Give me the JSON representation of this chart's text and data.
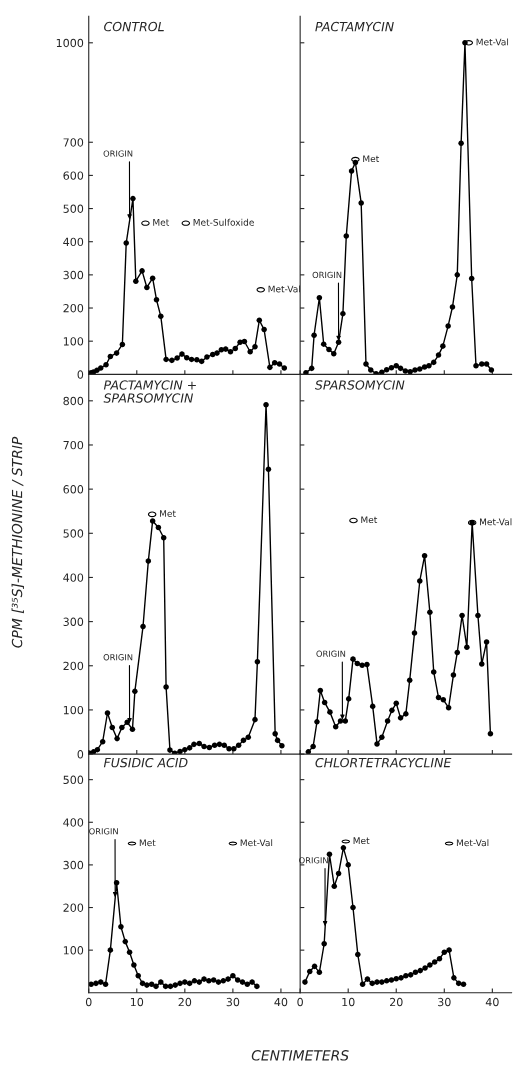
{
  "chart_data": [
    {
      "type": "line",
      "title": "CONTROL",
      "color": "#000000",
      "marker": "circle",
      "xlim": [
        0,
        44
      ],
      "xticks": [
        0,
        10,
        20,
        30,
        40
      ],
      "ylim": [
        0,
        1080
      ],
      "yticks": [
        0,
        100,
        200,
        300,
        400,
        500,
        600,
        700,
        1000
      ],
      "tick_labels": "y",
      "x": [
        0.5,
        1.0,
        1.7,
        2.5,
        3.6,
        4.5,
        5.8,
        7.0,
        7.8,
        9.2,
        9.8,
        11.1,
        12.1,
        13.3,
        14.1,
        15.0,
        16.1,
        17.3,
        18.4,
        19.4,
        20.4,
        21.4,
        22.5,
        23.5,
        24.6,
        25.8,
        26.7,
        27.6,
        28.5,
        29.5,
        30.5,
        31.5,
        32.4,
        33.6,
        34.6,
        35.5,
        36.5,
        37.7,
        38.7,
        39.7,
        40.7
      ],
      "values": [
        5,
        7,
        12,
        19,
        29,
        54,
        64,
        90,
        396,
        530,
        281,
        312,
        262,
        290,
        225,
        175,
        45,
        42,
        49,
        61,
        50,
        45,
        44,
        39,
        52,
        60,
        64,
        74,
        76,
        68,
        78,
        97,
        99,
        68,
        83,
        163,
        135,
        21,
        35,
        31,
        19
      ],
      "annotations": [
        {
          "text": "ORIGIN",
          "x": 8.5,
          "y": 463
        },
        {
          "text": "Met",
          "x": 11.8,
          "y": 456
        },
        {
          "text": "Met-Sulfoxide",
          "x": 20.2,
          "y": 456
        },
        {
          "text": "Met-Val",
          "x": 35.8,
          "y": 255
        }
      ]
    },
    {
      "type": "line",
      "title": "PACTAMYCIN",
      "color": "#000000",
      "marker": "circle",
      "xlim": [
        0,
        44
      ],
      "xticks": [
        0,
        10,
        20,
        30,
        40
      ],
      "ylim": [
        0,
        1080
      ],
      "yticks": [
        0,
        100,
        200,
        300,
        400,
        500,
        600,
        700,
        1000
      ],
      "tick_labels": false,
      "x": [
        1.2,
        2.4,
        2.9,
        4.0,
        4.9,
        6.0,
        7.0,
        8.0,
        8.9,
        9.6,
        10.7,
        11.5,
        12.7,
        13.7,
        14.7,
        15.8,
        17.0,
        18.0,
        19.0,
        20.0,
        20.9,
        21.9,
        22.9,
        23.9,
        24.9,
        25.9,
        26.8,
        27.8,
        28.8,
        29.7,
        30.8,
        31.7,
        32.7,
        33.5,
        34.3,
        35.7,
        36.6,
        37.8,
        38.8,
        39.8
      ],
      "values": [
        5,
        18,
        118,
        231,
        91,
        75,
        62,
        97,
        183,
        417,
        613,
        639,
        517,
        31,
        13,
        2,
        6,
        14,
        20,
        26,
        18,
        10,
        8,
        13,
        16,
        22,
        26,
        36,
        58,
        85,
        146,
        203,
        300,
        697,
        1000,
        289,
        26,
        31,
        31,
        13
      ],
      "annotations": [
        {
          "text": "ORIGIN",
          "x": 8.0,
          "y": 97
        },
        {
          "text": "Met",
          "x": 11.5,
          "y": 648
        },
        {
          "text": "Met-Val",
          "x": 35.1,
          "y": 1000
        }
      ]
    },
    {
      "type": "line",
      "title": "PACTAMYCIN +\nSPARSOMYCIN",
      "color": "#000000",
      "marker": "circle",
      "xlim": [
        0,
        44
      ],
      "xticks": [
        0,
        10,
        20,
        30,
        40
      ],
      "ylim": [
        0,
        860
      ],
      "yticks": [
        0,
        100,
        200,
        300,
        400,
        500,
        600,
        700,
        800
      ],
      "tick_labels": "y",
      "ylabel": "CPM [³⁵S]-METHIONINE / STRIP",
      "x": [
        0.2,
        1.0,
        1.8,
        2.9,
        3.9,
        4.9,
        5.9,
        6.9,
        8.0,
        9.1,
        9.6,
        11.3,
        12.4,
        13.3,
        14.5,
        15.6,
        16.1,
        16.9,
        17.9,
        19.0,
        20.0,
        21.0,
        21.9,
        23.0,
        24.0,
        25.1,
        26.2,
        27.2,
        28.2,
        29.2,
        30.2,
        31.2,
        32.2,
        33.2,
        34.6,
        35.1,
        36.9,
        37.4,
        38.8,
        39.3,
        40.2
      ],
      "values": [
        2,
        5,
        10,
        28,
        93,
        60,
        35,
        60,
        72,
        56,
        142,
        289,
        437,
        528,
        513,
        490,
        152,
        9,
        2,
        6,
        10,
        14,
        22,
        24,
        17,
        15,
        20,
        22,
        20,
        12,
        12,
        20,
        31,
        38,
        78,
        209,
        791,
        645,
        46,
        31,
        19
      ],
      "annotations": [
        {
          "text": "ORIGIN",
          "x": 8.5,
          "y": 67
        },
        {
          "text": "Met",
          "x": 13.2,
          "y": 543
        }
      ]
    },
    {
      "type": "line",
      "title": "SPARSOMYCIN",
      "color": "#000000",
      "marker": "circle",
      "xlim": [
        0,
        44
      ],
      "xticks": [
        0,
        10,
        20,
        30,
        40
      ],
      "ylim": [
        0,
        860
      ],
      "yticks": [
        0,
        100,
        200,
        300,
        400,
        500,
        600,
        700,
        800
      ],
      "tick_labels": false,
      "x": [
        1.7,
        2.7,
        3.5,
        4.2,
        5.1,
        6.2,
        7.4,
        8.4,
        9.4,
        10.1,
        11.0,
        11.9,
        12.9,
        13.9,
        15.1,
        16.0,
        17.0,
        18.2,
        19.1,
        20.0,
        20.9,
        22.0,
        22.8,
        23.8,
        24.9,
        25.9,
        27.0,
        27.8,
        28.8,
        29.8,
        30.9,
        31.9,
        32.7,
        33.7,
        34.7,
        35.8,
        37.0,
        37.8,
        38.8,
        39.6
      ],
      "values": [
        5,
        17,
        73,
        144,
        117,
        95,
        62,
        75,
        75,
        125,
        215,
        205,
        201,
        203,
        108,
        23,
        38,
        75,
        99,
        115,
        82,
        91,
        167,
        274,
        392,
        449,
        321,
        186,
        128,
        123,
        105,
        179,
        230,
        314,
        242,
        524,
        314,
        204,
        254,
        46
      ],
      "annotations": [
        {
          "text": "ORIGIN",
          "x": 8.8,
          "y": 75
        },
        {
          "text": "Met",
          "x": 11.1,
          "y": 529
        },
        {
          "text": "Met-Val",
          "x": 35.8,
          "y": 524
        }
      ]
    },
    {
      "type": "line",
      "title": "FUSIDIC ACID",
      "color": "#000000",
      "marker": "circle",
      "xlim": [
        0,
        44
      ],
      "xticks": [
        0,
        10,
        20,
        30,
        40
      ],
      "ylim": [
        0,
        560
      ],
      "yticks": [
        100,
        200,
        300,
        400,
        500
      ],
      "xlabel": "CENTIMETERS",
      "x": [
        0.5,
        1.5,
        2.5,
        3.5,
        4.5,
        5.8,
        6.7,
        7.6,
        8.5,
        9.4,
        10.3,
        11.2,
        12.1,
        13.1,
        14.0,
        15.0,
        16.0,
        17.0,
        18.0,
        19.0,
        20.0,
        21.0,
        22.0,
        23.0,
        24.0,
        25.0,
        26.0,
        27.0,
        28.0,
        29.0,
        30.0,
        31.0,
        32.0,
        33.0,
        34.0,
        35.0
      ],
      "values": [
        20,
        22,
        25,
        20,
        100,
        258,
        155,
        120,
        95,
        65,
        40,
        22,
        18,
        20,
        15,
        25,
        15,
        15,
        18,
        22,
        25,
        22,
        28,
        25,
        32,
        28,
        30,
        25,
        28,
        32,
        40,
        30,
        25,
        20,
        25,
        15
      ],
      "annotations": [
        {
          "text": "ORIGIN",
          "x": 5.5,
          "y": 221
        },
        {
          "text": "Met",
          "x": 9.0,
          "y": 350
        },
        {
          "text": "Met-Val",
          "x": 30.0,
          "y": 350
        }
      ]
    },
    {
      "type": "line",
      "title": "CHLORTETRACYCLINE",
      "color": "#000000",
      "marker": "circle",
      "xlim": [
        0,
        44
      ],
      "xticks": [
        0,
        10,
        20,
        30,
        40
      ],
      "ylim": [
        0,
        560
      ],
      "yticks": [
        100,
        200,
        300,
        400,
        500
      ],
      "tick_labels": "x",
      "x": [
        1,
        2,
        3,
        4,
        5,
        6.1,
        7.1,
        8,
        9,
        10,
        11,
        12,
        13,
        14,
        15,
        16,
        17,
        18,
        19,
        20,
        21,
        22,
        23,
        24,
        25,
        26,
        27,
        28,
        29,
        30,
        31,
        32,
        33,
        34
      ],
      "values": [
        25,
        50,
        62,
        48,
        115,
        325,
        250,
        280,
        340,
        300,
        200,
        90,
        20,
        32,
        22,
        25,
        25,
        28,
        30,
        33,
        35,
        40,
        42,
        48,
        52,
        58,
        65,
        72,
        80,
        95,
        100,
        35,
        22,
        20
      ],
      "annotations": [
        {
          "text": "ORIGIN",
          "x": 5.2,
          "y": 153
        },
        {
          "text": "Met",
          "x": 9.5,
          "y": 355
        },
        {
          "text": "Met-Val",
          "x": 31.0,
          "y": 350
        }
      ]
    }
  ]
}
